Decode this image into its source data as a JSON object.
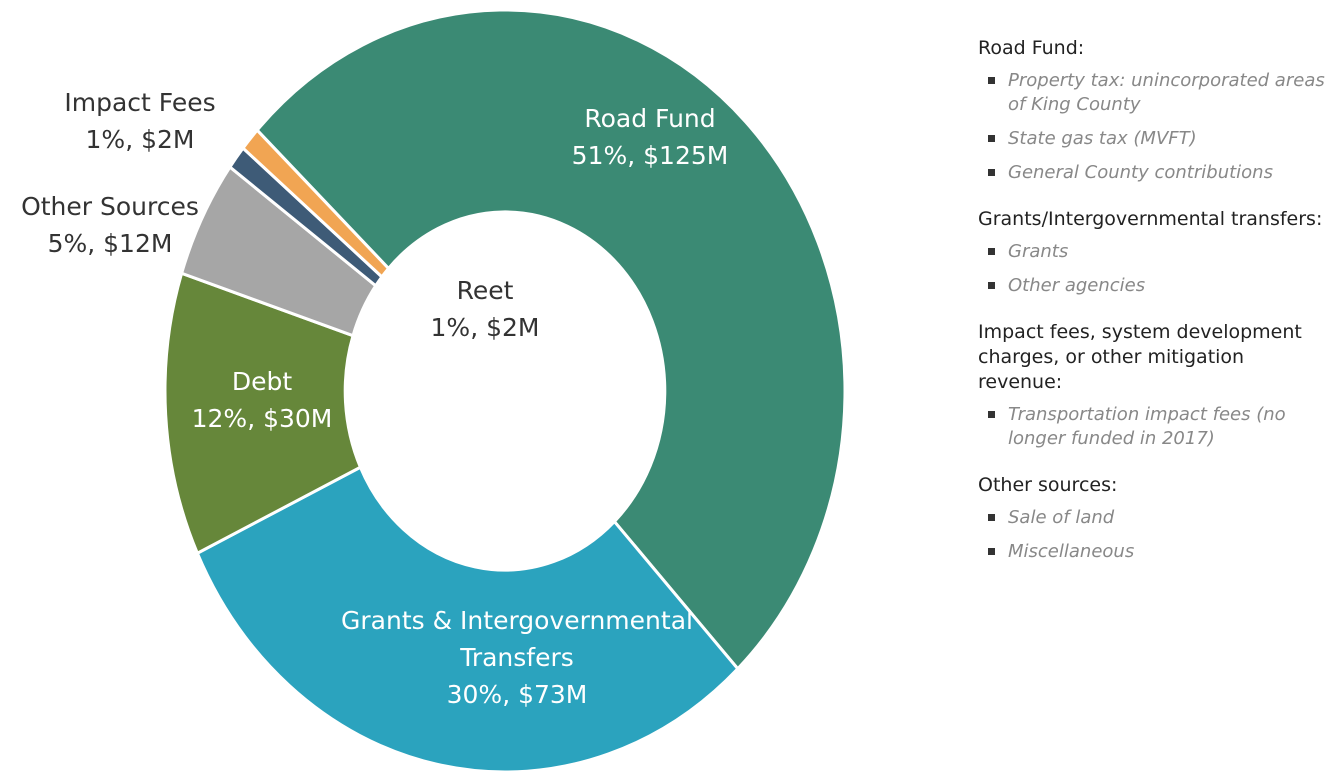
{
  "chart_data": {
    "type": "donut",
    "categories": [
      "Road Fund",
      "Grants & Intergovernmental Transfers",
      "Debt",
      "Other Sources",
      "Reet",
      "Impact Fees"
    ],
    "values": [
      51,
      30,
      12,
      5,
      1,
      1
    ],
    "value_labels": [
      "51%, $125M",
      "30%, $73M",
      "12%, $30M",
      "5%, $12M",
      "1%, $2M",
      "1%, $2M"
    ],
    "colors": [
      "#3b8a74",
      "#2ba3be",
      "#66873a",
      "#a6a6a6",
      "#3e5b77",
      "#f1a553"
    ]
  },
  "notes": [
    {
      "heading": "Road Fund:",
      "items": [
        "Property tax: unincorporated areas of King County",
        "State gas tax (MVFT)",
        "General County contributions"
      ]
    },
    {
      "heading": "Grants/Intergovernmental transfers:",
      "items": [
        "Grants",
        "Other agencies"
      ]
    },
    {
      "heading": "Impact fees, system development charges, or other mitigation revenue:",
      "items": [
        "Transportation impact fees (no longer funded in 2017)"
      ]
    },
    {
      "heading": "Other sources:",
      "items": [
        "Sale of land",
        "Miscellaneous"
      ]
    }
  ]
}
